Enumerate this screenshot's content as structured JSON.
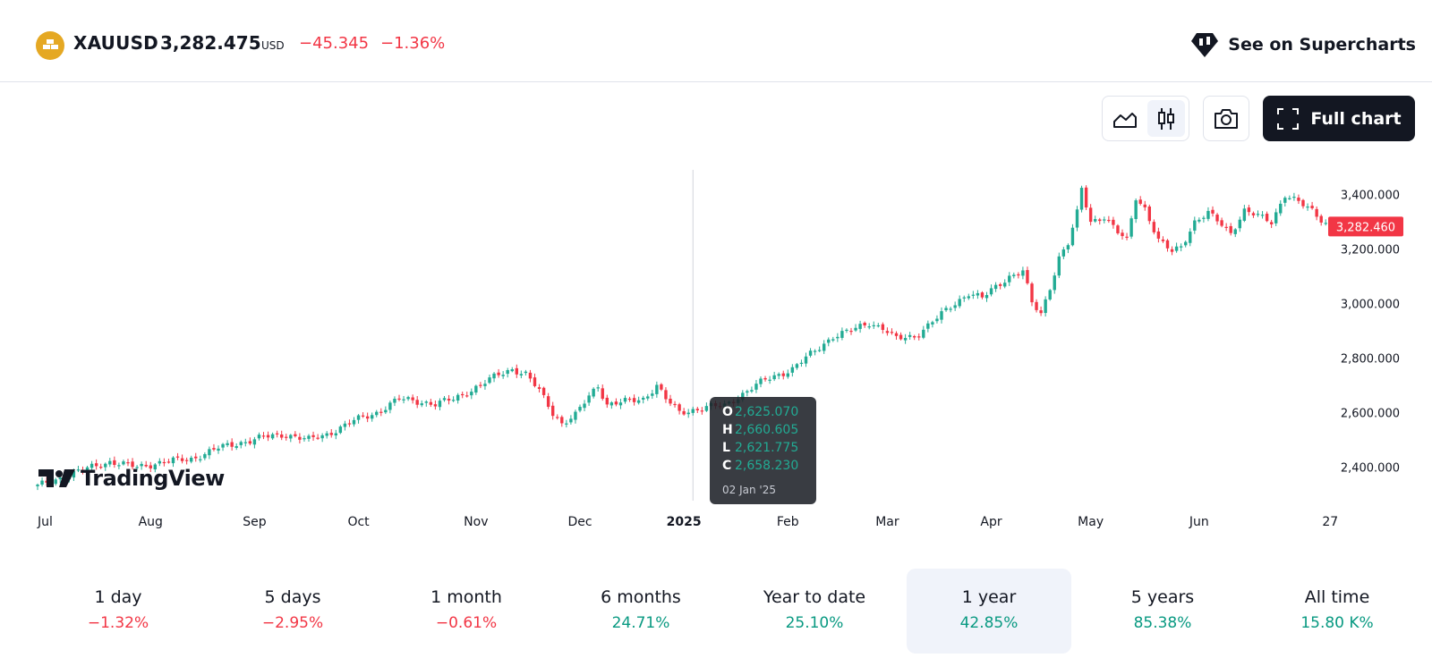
{
  "header": {
    "symbol": "XAUUSD",
    "price": "3,282.475",
    "currency": "USD",
    "change_abs": "−45.345",
    "change_pct": "−1.36%",
    "supercharts_label": "See on Supercharts",
    "logo_icon": "gold-bars-icon"
  },
  "toolbar": {
    "line_icon": "area-line-chart-icon",
    "candle_icon": "candlestick-icon",
    "camera_icon": "camera-icon",
    "full_chart_label": "Full chart"
  },
  "watermark": "TradingView",
  "colors": {
    "up": "#22ab94",
    "down": "#f23645",
    "text": "#131722",
    "accent": "#f23645"
  },
  "chart_data": {
    "type": "candlestick",
    "x_labels": [
      "Jul",
      "Aug",
      "Sep",
      "Oct",
      "Nov",
      "Dec",
      "2025",
      "Feb",
      "Mar",
      "Apr",
      "May",
      "Jun",
      "27"
    ],
    "y_ticks": [
      "2,400.000",
      "2,600.000",
      "2,800.000",
      "3,000.000",
      "3,200.000",
      "3,400.000"
    ],
    "y_tick_values": [
      2400,
      2600,
      2800,
      3000,
      3200,
      3400
    ],
    "ylim": [
      2300,
      3500
    ],
    "last_price_label": "3,282.460",
    "last_price": 3282.46,
    "close_anchors": [
      [
        0,
        2330
      ],
      [
        10,
        2390
      ],
      [
        16,
        2420
      ],
      [
        22,
        2400
      ],
      [
        28,
        2420
      ],
      [
        34,
        2430
      ],
      [
        40,
        2470
      ],
      [
        45,
        2490
      ],
      [
        50,
        2510
      ],
      [
        55,
        2520
      ],
      [
        60,
        2500
      ],
      [
        64,
        2520
      ],
      [
        70,
        2570
      ],
      [
        75,
        2600
      ],
      [
        80,
        2650
      ],
      [
        85,
        2640
      ],
      [
        88,
        2630
      ],
      [
        92,
        2650
      ],
      [
        98,
        2700
      ],
      [
        102,
        2740
      ],
      [
        105,
        2760
      ],
      [
        108,
        2740
      ],
      [
        111,
        2680
      ],
      [
        114,
        2600
      ],
      [
        116,
        2560
      ],
      [
        119,
        2590
      ],
      [
        122,
        2660
      ],
      [
        124,
        2700
      ],
      [
        126,
        2630
      ],
      [
        130,
        2640
      ],
      [
        134,
        2650
      ],
      [
        137,
        2700
      ],
      [
        139,
        2650
      ],
      [
        142,
        2600
      ],
      [
        148,
        2620
      ],
      [
        152,
        2625
      ],
      [
        155,
        2658
      ],
      [
        158,
        2690
      ],
      [
        161,
        2720
      ],
      [
        164,
        2740
      ],
      [
        167,
        2760
      ],
      [
        170,
        2800
      ],
      [
        173,
        2840
      ],
      [
        176,
        2880
      ],
      [
        180,
        2900
      ],
      [
        184,
        2930
      ],
      [
        187,
        2910
      ],
      [
        190,
        2870
      ],
      [
        194,
        2880
      ],
      [
        197,
        2920
      ],
      [
        200,
        2960
      ],
      [
        203,
        3000
      ],
      [
        206,
        3040
      ],
      [
        209,
        3020
      ],
      [
        212,
        3060
      ],
      [
        215,
        3100
      ],
      [
        218,
        3120
      ],
      [
        220,
        3000
      ],
      [
        222,
        2960
      ],
      [
        224,
        3060
      ],
      [
        226,
        3170
      ],
      [
        228,
        3220
      ],
      [
        230,
        3330
      ],
      [
        231,
        3420
      ],
      [
        233,
        3300
      ],
      [
        236,
        3320
      ],
      [
        239,
        3260
      ],
      [
        241,
        3230
      ],
      [
        243,
        3390
      ],
      [
        245,
        3350
      ],
      [
        248,
        3230
      ],
      [
        251,
        3190
      ],
      [
        253,
        3210
      ],
      [
        256,
        3300
      ],
      [
        259,
        3330
      ],
      [
        262,
        3290
      ],
      [
        264,
        3260
      ],
      [
        267,
        3340
      ],
      [
        270,
        3320
      ],
      [
        273,
        3300
      ],
      [
        276,
        3400
      ],
      [
        279,
        3370
      ],
      [
        282,
        3340
      ],
      [
        284,
        3310
      ],
      [
        286,
        3282
      ]
    ],
    "tooltip": {
      "open_key": "O",
      "open": "2,625.070",
      "high_key": "H",
      "high": "2,660.605",
      "low_key": "L",
      "low": "2,621.775",
      "close_key": "C",
      "close": "2,658.230",
      "date": "02 Jan '25"
    }
  },
  "periods": [
    {
      "label": "1 day",
      "value": "−1.32%",
      "dir": "neg"
    },
    {
      "label": "5 days",
      "value": "−2.95%",
      "dir": "neg"
    },
    {
      "label": "1 month",
      "value": "−0.61%",
      "dir": "neg"
    },
    {
      "label": "6 months",
      "value": "24.71%",
      "dir": "pos"
    },
    {
      "label": "Year to date",
      "value": "25.10%",
      "dir": "pos"
    },
    {
      "label": "1 year",
      "value": "42.85%",
      "dir": "pos",
      "active": true
    },
    {
      "label": "5 years",
      "value": "85.38%",
      "dir": "pos"
    },
    {
      "label": "All time",
      "value": "15.80 K%",
      "dir": "pos"
    }
  ]
}
